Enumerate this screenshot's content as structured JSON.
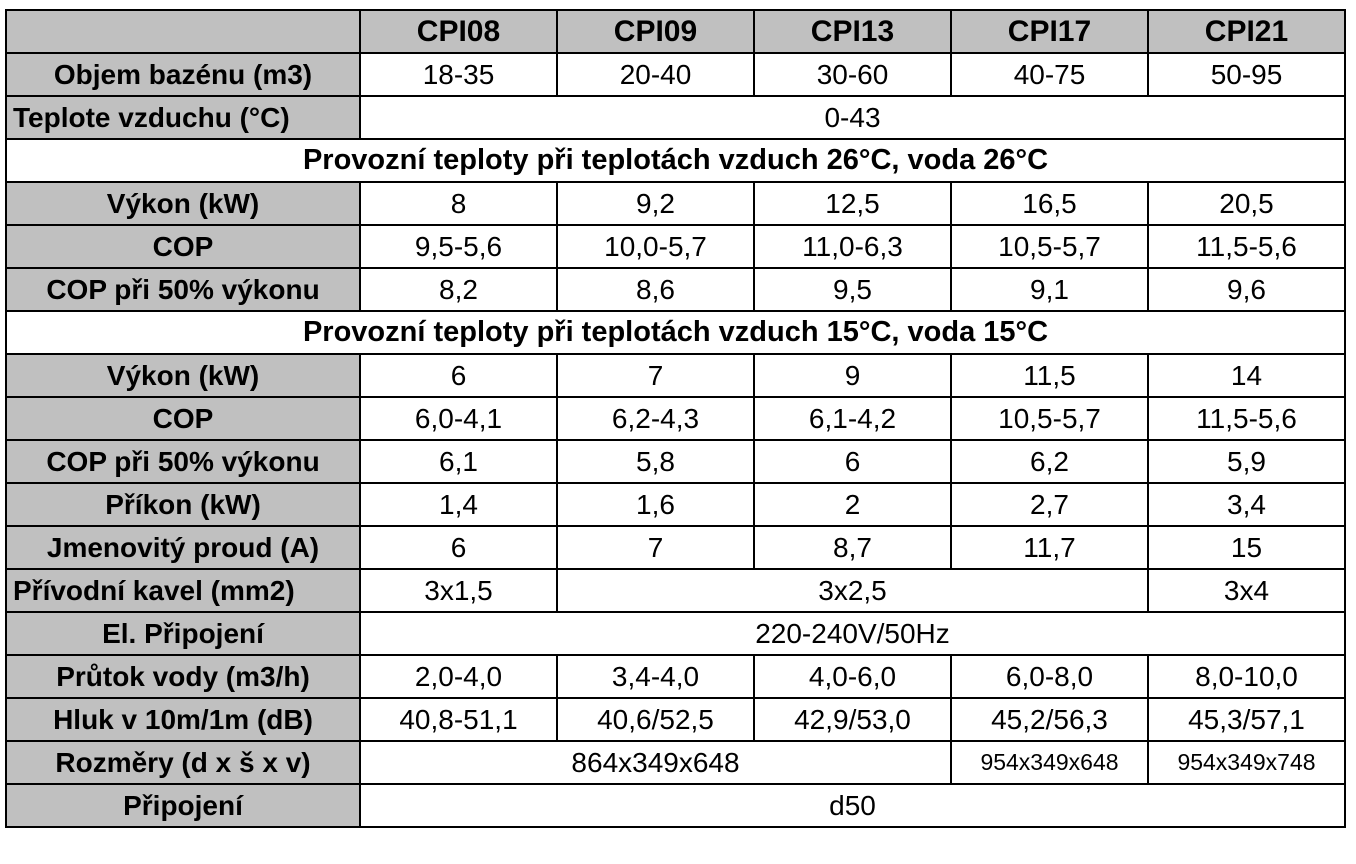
{
  "table": {
    "models": [
      "CPI08",
      "CPI09",
      "CPI13",
      "CPI17",
      "CPI21"
    ],
    "pool_volume": {
      "label": "Objem bazénu (m3)",
      "values": [
        "18-35",
        "20-40",
        "30-60",
        "40-75",
        "50-95"
      ]
    },
    "air_temp": {
      "label": "Teplote vzduchu (°C)",
      "value": "0-43"
    },
    "section_26": {
      "title": "Provozní teploty při teplotách vzduch 26°C, voda 26°C",
      "power": {
        "label": "Výkon (kW)",
        "values": [
          "8",
          "9,2",
          "12,5",
          "16,5",
          "20,5"
        ]
      },
      "cop": {
        "label": "COP",
        "values": [
          "9,5-5,6",
          "10,0-5,7",
          "11,0-6,3",
          "10,5-5,7",
          "11,5-5,6"
        ]
      },
      "cop_50": {
        "label": "COP při 50% výkonu",
        "values": [
          "8,2",
          "8,6",
          "9,5",
          "9,1",
          "9,6"
        ]
      }
    },
    "section_15": {
      "title": "Provozní teploty při teplotách vzduch 15°C, voda 15°C",
      "power": {
        "label": "Výkon (kW)",
        "values": [
          "6",
          "7",
          "9",
          "11,5",
          "14"
        ]
      },
      "cop": {
        "label": "COP",
        "values": [
          "6,0-4,1",
          "6,2-4,3",
          "6,1-4,2",
          "10,5-5,7",
          "11,5-5,6"
        ]
      },
      "cop_50": {
        "label": "COP při 50% výkonu",
        "values": [
          "6,1",
          "5,8",
          "6",
          "6,2",
          "5,9"
        ]
      }
    },
    "input_power": {
      "label": "Příkon (kW)",
      "values": [
        "1,4",
        "1,6",
        "2",
        "2,7",
        "3,4"
      ]
    },
    "rated_current": {
      "label": "Jmenovitý proud (A)",
      "values": [
        "6",
        "7",
        "8,7",
        "11,7",
        "15"
      ]
    },
    "supply_cable": {
      "label": "Přívodní kavel (mm2)",
      "cpi08": "3x1,5",
      "cpi09_17": "3x2,5",
      "cpi21": "3x4"
    },
    "electrical": {
      "label": "El. Připojení",
      "value": "220-240V/50Hz"
    },
    "water_flow": {
      "label": "Průtok vody (m3/h)",
      "values": [
        "2,0-4,0",
        "3,4-4,0",
        "4,0-6,0",
        "6,0-8,0",
        "8,0-10,0"
      ]
    },
    "noise": {
      "label": "Hluk v 10m/1m (dB)",
      "values": [
        "40,8-51,1",
        "40,6/52,5",
        "42,9/53,0",
        "45,2/56,3",
        "45,3/57,1"
      ]
    },
    "dimensions": {
      "label": "Rozměry (d x š x v)",
      "cpi08_13": "864x349x648",
      "cpi17": "954x349x648",
      "cpi21": "954x349x748"
    },
    "connection": {
      "label": "Připojení",
      "value": "d50"
    }
  }
}
